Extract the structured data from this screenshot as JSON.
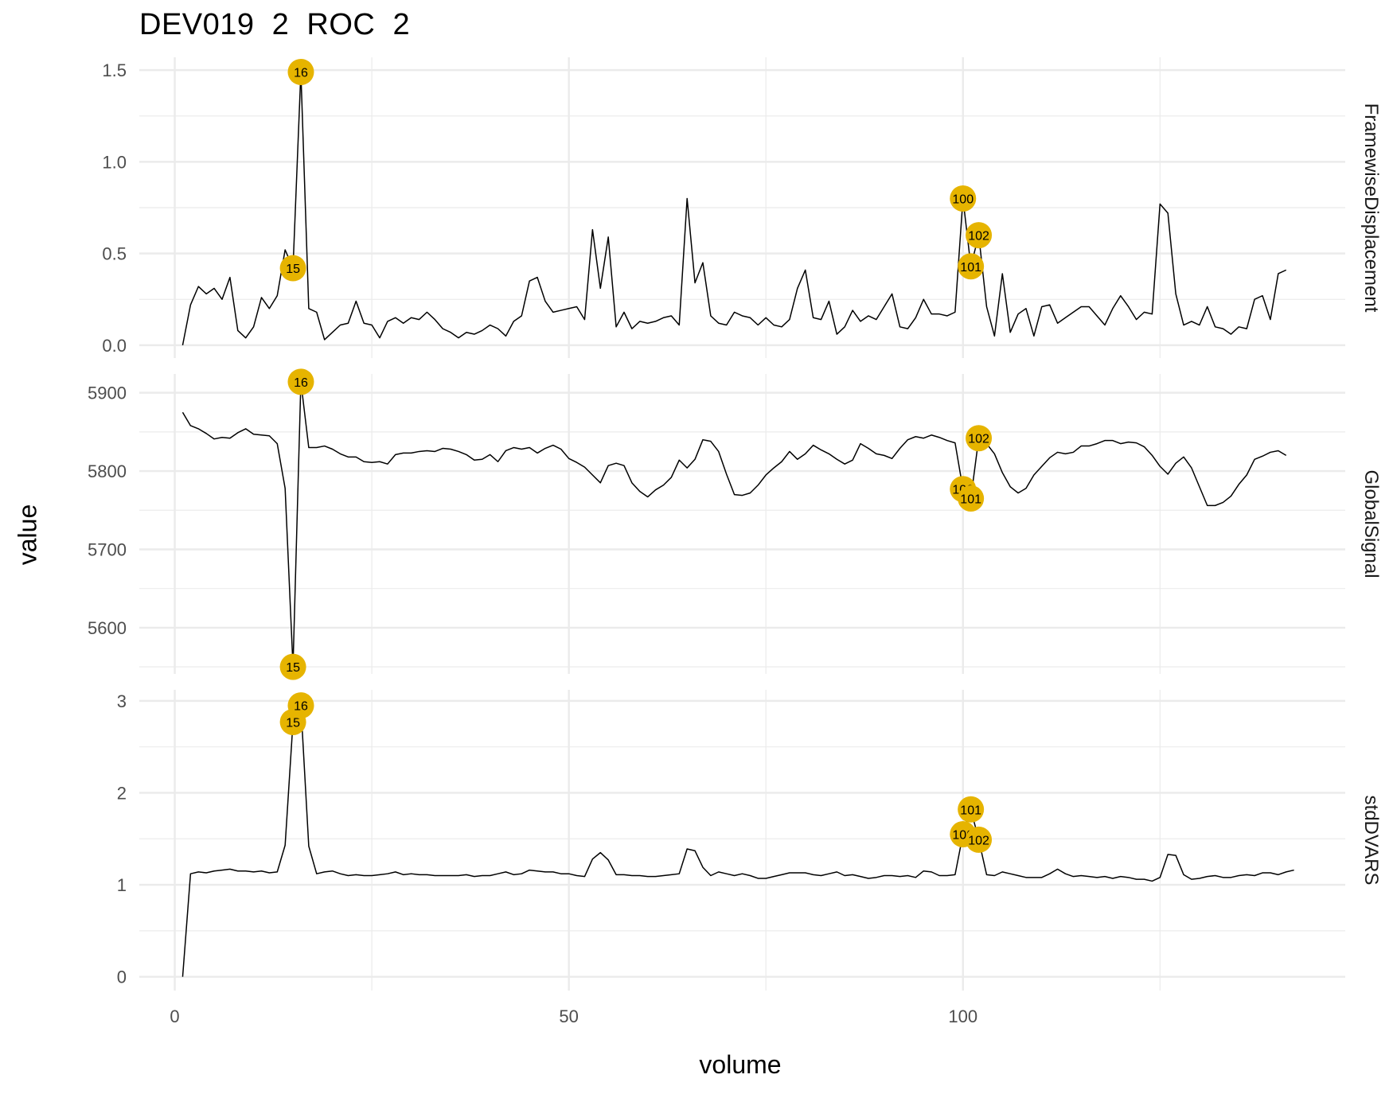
{
  "chart_data": {
    "type": "line",
    "title": "DEV019  2  ROC  2",
    "xlabel": "volume",
    "ylabel": "value",
    "xlim": [
      -4.5,
      148.5
    ],
    "x_ticks": [
      0,
      50,
      100
    ],
    "grid": true,
    "line_color": "#000000",
    "highlight_color": "#E6B400",
    "panels": [
      {
        "name": "FramewiseDisplacement",
        "ylim": [
          -0.07,
          1.57
        ],
        "y_ticks": [
          0.0,
          0.5,
          1.0,
          1.5
        ],
        "y_tick_labels": [
          "0.0",
          "0.5",
          "1.0",
          "1.5"
        ],
        "values": [
          0,
          0.22,
          0.32,
          0.28,
          0.31,
          0.25,
          0.37,
          0.08,
          0.04,
          0.1,
          0.26,
          0.2,
          0.27,
          0.52,
          0.42,
          1.49,
          0.2,
          0.18,
          0.03,
          0.07,
          0.11,
          0.12,
          0.24,
          0.12,
          0.11,
          0.04,
          0.13,
          0.15,
          0.12,
          0.15,
          0.14,
          0.18,
          0.14,
          0.09,
          0.07,
          0.04,
          0.07,
          0.06,
          0.08,
          0.11,
          0.09,
          0.05,
          0.13,
          0.16,
          0.35,
          0.37,
          0.24,
          0.18,
          0.19,
          0.2,
          0.21,
          0.14,
          0.63,
          0.31,
          0.59,
          0.1,
          0.18,
          0.09,
          0.13,
          0.12,
          0.13,
          0.15,
          0.16,
          0.11,
          0.8,
          0.34,
          0.45,
          0.16,
          0.12,
          0.11,
          0.18,
          0.16,
          0.15,
          0.11,
          0.15,
          0.11,
          0.1,
          0.14,
          0.31,
          0.41,
          0.15,
          0.14,
          0.24,
          0.06,
          0.1,
          0.19,
          0.13,
          0.16,
          0.14,
          0.21,
          0.28,
          0.1,
          0.09,
          0.15,
          0.25,
          0.17,
          0.17,
          0.16,
          0.18,
          0.8,
          0.43,
          0.6,
          0.21,
          0.05,
          0.39,
          0.07,
          0.17,
          0.2,
          0.05,
          0.21,
          0.22,
          0.12,
          0.15,
          0.18,
          0.21,
          0.21,
          0.16,
          0.11,
          0.2,
          0.27,
          0.21,
          0.14,
          0.18,
          0.17,
          0.77,
          0.72,
          0.28,
          0.11,
          0.13,
          0.11,
          0.21,
          0.1,
          0.09,
          0.06,
          0.1,
          0.09,
          0.25,
          0.27,
          0.14,
          0.39,
          0.41
        ],
        "highlights": [
          {
            "volume": 15,
            "value": 0.42,
            "label": "15"
          },
          {
            "volume": 16,
            "value": 1.49,
            "label": "16"
          },
          {
            "volume": 100,
            "value": 0.8,
            "label": "100"
          },
          {
            "volume": 101,
            "value": 0.43,
            "label": "101"
          },
          {
            "volume": 102,
            "value": 0.6,
            "label": "102"
          }
        ]
      },
      {
        "name": "GlobalSignal",
        "ylim": [
          5541,
          5924
        ],
        "y_ticks": [
          5600,
          5700,
          5800,
          5900
        ],
        "y_tick_labels": [
          "5600",
          "5700",
          "5800",
          "5900"
        ],
        "values": [
          5875,
          5858,
          5854,
          5848,
          5841,
          5843,
          5842,
          5849,
          5854,
          5847,
          5846,
          5845,
          5835,
          5778,
          5550,
          5914,
          5830,
          5830,
          5832,
          5828,
          5822,
          5818,
          5818,
          5812,
          5811,
          5812,
          5809,
          5821,
          5823,
          5823,
          5825,
          5826,
          5825,
          5829,
          5828,
          5825,
          5821,
          5814,
          5815,
          5821,
          5812,
          5826,
          5830,
          5828,
          5830,
          5823,
          5829,
          5833,
          5828,
          5816,
          5811,
          5805,
          5795,
          5785,
          5807,
          5810,
          5807,
          5785,
          5774,
          5767,
          5776,
          5782,
          5792,
          5814,
          5804,
          5815,
          5840,
          5838,
          5825,
          5796,
          5770,
          5769,
          5772,
          5782,
          5795,
          5804,
          5812,
          5825,
          5815,
          5822,
          5833,
          5827,
          5822,
          5815,
          5809,
          5814,
          5835,
          5829,
          5822,
          5820,
          5816,
          5829,
          5840,
          5844,
          5842,
          5846,
          5843,
          5839,
          5836,
          5777,
          5765,
          5842,
          5835,
          5822,
          5798,
          5780,
          5772,
          5778,
          5795,
          5806,
          5817,
          5824,
          5822,
          5824,
          5832,
          5832,
          5835,
          5839,
          5839,
          5835,
          5837,
          5836,
          5831,
          5820,
          5806,
          5796,
          5810,
          5818,
          5804,
          5780,
          5756,
          5756,
          5760,
          5768,
          5783,
          5795,
          5815,
          5819,
          5824,
          5826,
          5820
        ],
        "highlights": [
          {
            "volume": 15,
            "value": 5550,
            "label": "15"
          },
          {
            "volume": 16,
            "value": 5914,
            "label": "16"
          },
          {
            "volume": 100,
            "value": 5777,
            "label": "100"
          },
          {
            "volume": 101,
            "value": 5765,
            "label": "101"
          },
          {
            "volume": 102,
            "value": 5842,
            "label": "102"
          }
        ]
      },
      {
        "name": "stdDVARS",
        "ylim": [
          -0.15,
          3.12
        ],
        "y_ticks": [
          0,
          1,
          2,
          3
        ],
        "y_tick_labels": [
          "0",
          "1",
          "2",
          "3"
        ],
        "values": [
          0,
          1.12,
          1.14,
          1.13,
          1.15,
          1.16,
          1.17,
          1.15,
          1.15,
          1.14,
          1.15,
          1.13,
          1.14,
          1.43,
          2.77,
          2.95,
          1.42,
          1.12,
          1.14,
          1.15,
          1.12,
          1.1,
          1.11,
          1.1,
          1.1,
          1.11,
          1.12,
          1.14,
          1.11,
          1.12,
          1.11,
          1.11,
          1.1,
          1.1,
          1.1,
          1.1,
          1.11,
          1.09,
          1.1,
          1.1,
          1.12,
          1.14,
          1.11,
          1.12,
          1.16,
          1.15,
          1.14,
          1.14,
          1.12,
          1.12,
          1.1,
          1.09,
          1.28,
          1.35,
          1.27,
          1.11,
          1.11,
          1.1,
          1.1,
          1.09,
          1.09,
          1.1,
          1.11,
          1.12,
          1.39,
          1.37,
          1.19,
          1.1,
          1.14,
          1.12,
          1.1,
          1.12,
          1.1,
          1.07,
          1.07,
          1.09,
          1.11,
          1.13,
          1.13,
          1.13,
          1.11,
          1.1,
          1.12,
          1.14,
          1.1,
          1.11,
          1.09,
          1.07,
          1.08,
          1.1,
          1.1,
          1.09,
          1.1,
          1.08,
          1.15,
          1.14,
          1.1,
          1.1,
          1.11,
          1.55,
          1.82,
          1.49,
          1.11,
          1.1,
          1.14,
          1.12,
          1.1,
          1.08,
          1.08,
          1.08,
          1.12,
          1.17,
          1.12,
          1.09,
          1.1,
          1.09,
          1.08,
          1.09,
          1.07,
          1.09,
          1.08,
          1.06,
          1.06,
          1.04,
          1.08,
          1.33,
          1.32,
          1.11,
          1.06,
          1.07,
          1.09,
          1.1,
          1.08,
          1.08,
          1.1,
          1.11,
          1.1,
          1.13,
          1.13,
          1.11,
          1.14,
          1.16
        ],
        "highlights": [
          {
            "volume": 15,
            "value": 2.77,
            "label": "15"
          },
          {
            "volume": 16,
            "value": 2.95,
            "label": "16"
          },
          {
            "volume": 100,
            "value": 1.55,
            "label": "100"
          },
          {
            "volume": 101,
            "value": 1.82,
            "label": "101"
          },
          {
            "volume": 102,
            "value": 1.49,
            "label": "102"
          }
        ]
      }
    ]
  }
}
